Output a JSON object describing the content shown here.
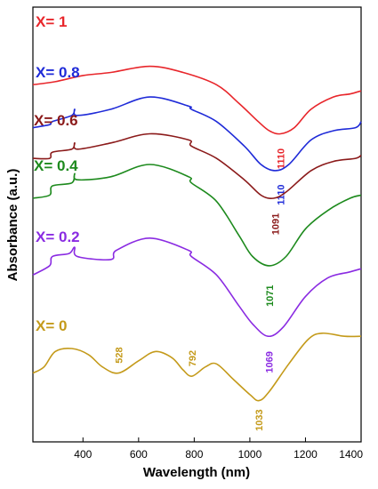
{
  "chart_data": {
    "type": "line",
    "xlabel": "Wavelength (nm)",
    "ylabel": "Absorbance (a.u.)",
    "xlim": [
      220,
      1400
    ],
    "x_ticks": [
      "400",
      "600",
      "800",
      "1000",
      "1200",
      "1400"
    ],
    "x_tick_values": [
      400,
      600,
      800,
      1000,
      1200,
      1400
    ],
    "y_ticks_shown": false,
    "grid": false,
    "series": [
      {
        "name": "X= 1",
        "color": "#e8262b",
        "points": [
          [
            220,
            0.86
          ],
          [
            300,
            0.87
          ],
          [
            400,
            0.89
          ],
          [
            500,
            0.9
          ],
          [
            640,
            0.92
          ],
          [
            760,
            0.9
          ],
          [
            880,
            0.86
          ],
          [
            960,
            0.8
          ],
          [
            1030,
            0.74
          ],
          [
            1070,
            0.71
          ],
          [
            1110,
            0.7
          ],
          [
            1160,
            0.72
          ],
          [
            1220,
            0.78
          ],
          [
            1300,
            0.82
          ],
          [
            1360,
            0.83
          ],
          [
            1400,
            0.84
          ]
        ],
        "annotations": [
          {
            "text": "1110",
            "x": 1110
          }
        ]
      },
      {
        "name": "X= 0.8",
        "color": "#1f2bd8",
        "points": [
          [
            220,
            0.72
          ],
          [
            280,
            0.73
          ],
          [
            290,
            0.74
          ],
          [
            360,
            0.76
          ],
          [
            370,
            0.78
          ],
          [
            380,
            0.76
          ],
          [
            500,
            0.78
          ],
          [
            640,
            0.82
          ],
          [
            780,
            0.79
          ],
          [
            790,
            0.78
          ],
          [
            880,
            0.74
          ],
          [
            980,
            0.66
          ],
          [
            1040,
            0.6
          ],
          [
            1090,
            0.58
          ],
          [
            1140,
            0.6
          ],
          [
            1220,
            0.68
          ],
          [
            1300,
            0.71
          ],
          [
            1380,
            0.72
          ],
          [
            1400,
            0.74
          ]
        ],
        "annotations": [
          {
            "text": "1110",
            "x": 1110
          }
        ]
      },
      {
        "name": "X= 0.6",
        "color": "#8b1a1a",
        "points": [
          [
            220,
            0.62
          ],
          [
            280,
            0.62
          ],
          [
            290,
            0.64
          ],
          [
            360,
            0.65
          ],
          [
            370,
            0.67
          ],
          [
            380,
            0.65
          ],
          [
            500,
            0.67
          ],
          [
            640,
            0.7
          ],
          [
            780,
            0.68
          ],
          [
            790,
            0.66
          ],
          [
            880,
            0.62
          ],
          [
            980,
            0.55
          ],
          [
            1040,
            0.5
          ],
          [
            1085,
            0.49
          ],
          [
            1130,
            0.51
          ],
          [
            1220,
            0.58
          ],
          [
            1300,
            0.61
          ],
          [
            1380,
            0.62
          ],
          [
            1400,
            0.63
          ]
        ],
        "annotations": [
          {
            "text": "1091",
            "x": 1091
          }
        ]
      },
      {
        "name": "X= 0.4",
        "color": "#1d8a1d",
        "points": [
          [
            220,
            0.49
          ],
          [
            280,
            0.5
          ],
          [
            290,
            0.53
          ],
          [
            360,
            0.54
          ],
          [
            370,
            0.57
          ],
          [
            380,
            0.55
          ],
          [
            500,
            0.56
          ],
          [
            640,
            0.6
          ],
          [
            780,
            0.56
          ],
          [
            790,
            0.54
          ],
          [
            880,
            0.48
          ],
          [
            960,
            0.37
          ],
          [
            1010,
            0.3
          ],
          [
            1070,
            0.27
          ],
          [
            1130,
            0.3
          ],
          [
            1200,
            0.39
          ],
          [
            1280,
            0.45
          ],
          [
            1360,
            0.49
          ],
          [
            1400,
            0.5
          ]
        ],
        "annotations": [
          {
            "text": "1071",
            "x": 1071
          }
        ]
      },
      {
        "name": "X= 0.2",
        "color": "#8a2be2",
        "points": [
          [
            220,
            0.24
          ],
          [
            280,
            0.27
          ],
          [
            290,
            0.3
          ],
          [
            350,
            0.31
          ],
          [
            370,
            0.33
          ],
          [
            380,
            0.3
          ],
          [
            500,
            0.29
          ],
          [
            520,
            0.32
          ],
          [
            640,
            0.36
          ],
          [
            780,
            0.32
          ],
          [
            790,
            0.3
          ],
          [
            880,
            0.24
          ],
          [
            960,
            0.14
          ],
          [
            1010,
            0.08
          ],
          [
            1065,
            0.04
          ],
          [
            1120,
            0.07
          ],
          [
            1200,
            0.17
          ],
          [
            1280,
            0.23
          ],
          [
            1360,
            0.25
          ],
          [
            1400,
            0.26
          ]
        ],
        "annotations": [
          {
            "text": "1069",
            "x": 1069
          }
        ]
      },
      {
        "name": "X= 0",
        "color": "#c49a1a",
        "points": [
          [
            220,
            -0.08
          ],
          [
            260,
            -0.06
          ],
          [
            300,
            -0.01
          ],
          [
            360,
            0.0
          ],
          [
            420,
            -0.02
          ],
          [
            470,
            -0.06
          ],
          [
            528,
            -0.08
          ],
          [
            600,
            -0.04
          ],
          [
            660,
            -0.01
          ],
          [
            720,
            -0.03
          ],
          [
            760,
            -0.07
          ],
          [
            792,
            -0.09
          ],
          [
            840,
            -0.06
          ],
          [
            880,
            -0.05
          ],
          [
            940,
            -0.1
          ],
          [
            1000,
            -0.15
          ],
          [
            1033,
            -0.17
          ],
          [
            1070,
            -0.14
          ],
          [
            1140,
            -0.05
          ],
          [
            1210,
            0.03
          ],
          [
            1260,
            0.05
          ],
          [
            1340,
            0.04
          ],
          [
            1400,
            0.04
          ]
        ],
        "annotations": [
          {
            "text": "528",
            "x": 528
          },
          {
            "text": "792",
            "x": 792
          },
          {
            "text": "1033",
            "x": 1033
          }
        ]
      }
    ]
  }
}
